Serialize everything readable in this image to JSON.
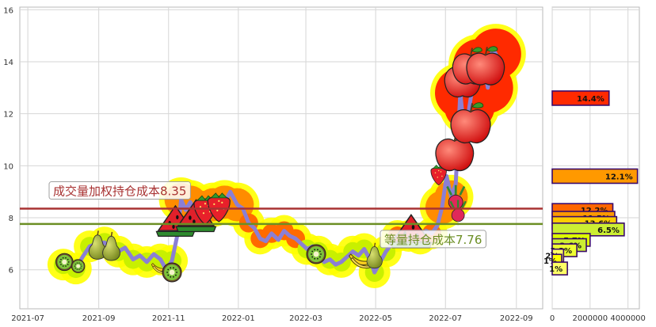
{
  "chart_data": [
    {
      "type": "line",
      "y_ticks": [
        6,
        8,
        10,
        12,
        14,
        16
      ],
      "x_ticks": [
        "2021-07",
        "2021-09",
        "2021-11",
        "2022-01",
        "2022-03",
        "2022-05",
        "2022-07",
        "2022-09"
      ],
      "ylim": [
        4.5,
        16.1
      ],
      "grid": true,
      "series": [
        {
          "points": [
            [
              "2021-08-01",
              6.2
            ],
            [
              "2021-08-06",
              6.4
            ],
            [
              "2021-08-12",
              6.05
            ],
            [
              "2021-08-18",
              6.5
            ],
            [
              "2021-08-24",
              6.9
            ],
            [
              "2021-08-30",
              7.0
            ],
            [
              "2021-09-06",
              7.05
            ],
            [
              "2021-09-12",
              6.8
            ],
            [
              "2021-09-18",
              6.7
            ],
            [
              "2021-09-24",
              6.85
            ],
            [
              "2021-10-01",
              6.4
            ],
            [
              "2021-10-07",
              6.55
            ],
            [
              "2021-10-13",
              6.3
            ],
            [
              "2021-10-19",
              6.6
            ],
            [
              "2021-10-25",
              6.4
            ],
            [
              "2021-10-30",
              6.0
            ],
            [
              "2021-11-04",
              6.35
            ],
            [
              "2021-11-09",
              7.4
            ],
            [
              "2021-11-12",
              8.7
            ],
            [
              "2021-11-16",
              8.3
            ],
            [
              "2021-11-20",
              8.6
            ],
            [
              "2021-11-25",
              8.1
            ],
            [
              "2021-11-30",
              8.4
            ],
            [
              "2021-12-05",
              8.0
            ],
            [
              "2021-12-10",
              8.5
            ],
            [
              "2021-12-15",
              8.7
            ],
            [
              "2021-12-20",
              8.6
            ],
            [
              "2021-12-25",
              9.0
            ],
            [
              "2021-12-31",
              8.5
            ],
            [
              "2022-01-05",
              8.35
            ],
            [
              "2022-01-10",
              7.8
            ],
            [
              "2022-01-15",
              7.6
            ],
            [
              "2022-01-20",
              7.2
            ],
            [
              "2022-01-25",
              7.1
            ],
            [
              "2022-01-30",
              7.4
            ],
            [
              "2022-02-05",
              7.15
            ],
            [
              "2022-02-10",
              7.5
            ],
            [
              "2022-02-15",
              7.3
            ],
            [
              "2022-02-20",
              7.2
            ],
            [
              "2022-02-25",
              7.0
            ],
            [
              "2022-03-02",
              6.8
            ],
            [
              "2022-03-07",
              6.9
            ],
            [
              "2022-03-12",
              6.7
            ],
            [
              "2022-03-17",
              6.3
            ],
            [
              "2022-03-22",
              6.4
            ],
            [
              "2022-03-27",
              6.2
            ],
            [
              "2022-04-01",
              6.3
            ],
            [
              "2022-04-06",
              6.5
            ],
            [
              "2022-04-11",
              6.7
            ],
            [
              "2022-04-16",
              6.55
            ],
            [
              "2022-04-21",
              6.8
            ],
            [
              "2022-04-26",
              6.4
            ],
            [
              "2022-04-30",
              5.9
            ],
            [
              "2022-05-05",
              6.3
            ],
            [
              "2022-05-10",
              6.7
            ],
            [
              "2022-05-15",
              7.0
            ],
            [
              "2022-05-20",
              7.3
            ],
            [
              "2022-05-25",
              7.5
            ],
            [
              "2022-05-30",
              7.3
            ],
            [
              "2022-06-04",
              7.6
            ],
            [
              "2022-06-09",
              7.2
            ],
            [
              "2022-06-14",
              7.5
            ],
            [
              "2022-06-19",
              7.4
            ],
            [
              "2022-06-24",
              7.7
            ],
            [
              "2022-06-28",
              8.4
            ],
            [
              "2022-07-02",
              9.6
            ],
            [
              "2022-07-06",
              8.8
            ],
            [
              "2022-07-10",
              9.3
            ],
            [
              "2022-07-14",
              12.8
            ],
            [
              "2022-07-18",
              11.0
            ],
            [
              "2022-07-22",
              12.3
            ],
            [
              "2022-07-26",
              13.4
            ],
            [
              "2022-07-30",
              13.9
            ],
            [
              "2022-08-03",
              14.2
            ],
            [
              "2022-08-07",
              13.0
            ],
            [
              "2022-08-11",
              14.5
            ],
            [
              "2022-08-14",
              14.3
            ]
          ]
        }
      ],
      "reference_lines": [
        {
          "label": "成交量加权持仓成本8.35",
          "value": 8.35,
          "color": "#a83232"
        },
        {
          "label": "等量持仓成本7.76",
          "value": 7.76,
          "color": "#6b8e23"
        }
      ],
      "colors": {
        "line": "#8b7fd4",
        "hot": "#ff2a00",
        "mid": "#ff8c00",
        "cool": "#c8f000",
        "yellow": "#ffff00"
      }
    },
    {
      "type": "bar",
      "orientation": "horizontal",
      "x_ticks": [
        "0",
        "2000000",
        "4000000"
      ],
      "xlim": [
        0,
        4600000
      ],
      "bars": [
        {
          "label": "14.4%",
          "price": 12.6,
          "value": 3000000,
          "fill": "#ff2a00"
        },
        {
          "label": "12.1%",
          "price": 9.6,
          "value": 4500000,
          "fill": "#ff9900"
        },
        {
          "label": "12.2%",
          "price": 8.3,
          "value": 3200000,
          "fill": "#ff6600"
        },
        {
          "label": "11.5%",
          "price": 8.0,
          "value": 3300000,
          "fill": "#ff9900"
        },
        {
          "label": "13.6%",
          "price": 7.8,
          "value": 3400000,
          "fill": "#ffcc00"
        },
        {
          "label": "6.5%",
          "price": 7.55,
          "value": 3800000,
          "fill": "#ccee33"
        },
        {
          "label": "5.7%",
          "price": 7.15,
          "value": 2000000,
          "fill": "#ddff00"
        },
        {
          "label": "3.6%",
          "price": 6.95,
          "value": 1800000,
          "fill": "#ccee33"
        },
        {
          "label": "3.2%",
          "price": 6.75,
          "value": 1300000,
          "fill": "#eeff33"
        },
        {
          "label": "2%",
          "price": 6.55,
          "value": 600000,
          "fill": "#ffff66"
        },
        {
          "label": "1%",
          "price": 6.35,
          "value": 500000,
          "fill": "#ffff00"
        },
        {
          "label": "1%",
          "price": 6.05,
          "value": 800000,
          "fill": "#ffff66"
        }
      ]
    }
  ]
}
